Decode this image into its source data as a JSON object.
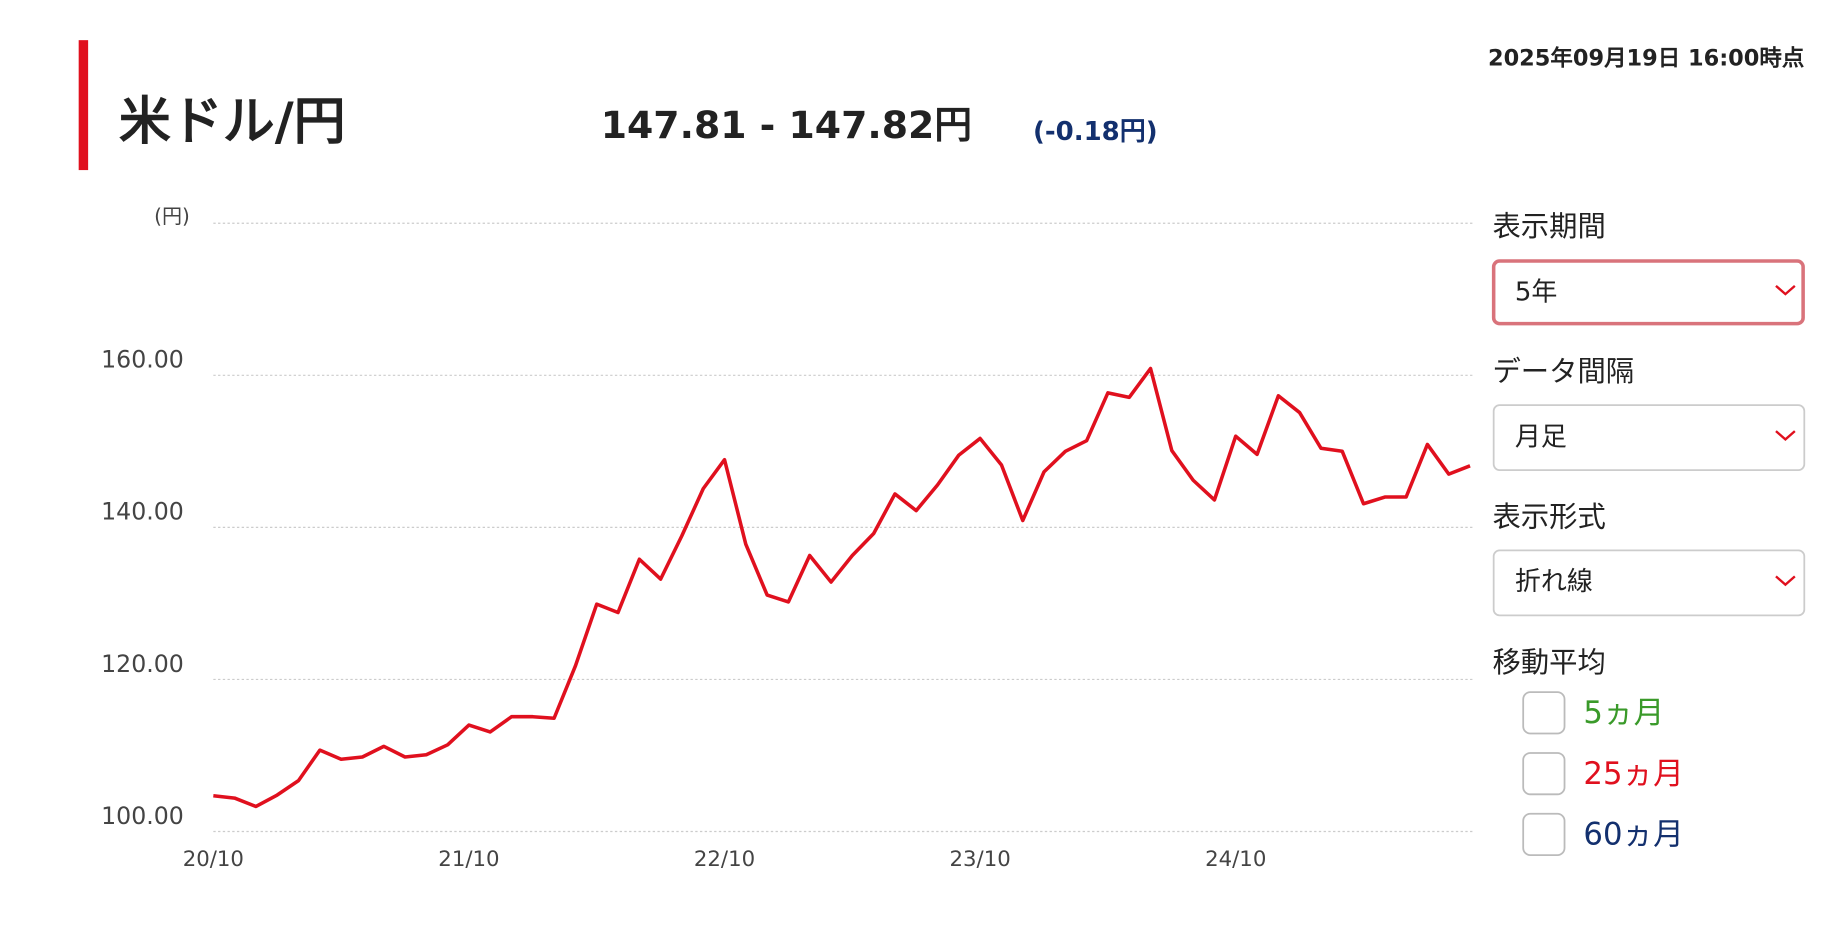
{
  "header": {
    "title": "米ドル/円",
    "price": "147.81 - 147.82円",
    "change": "(-0.18円)",
    "timestamp": "2025年09月19日 16:00時点"
  },
  "controls": {
    "period": {
      "label": "表示期間",
      "value": "5年"
    },
    "interval": {
      "label": "データ間隔",
      "value": "月足"
    },
    "format": {
      "label": "表示形式",
      "value": "折れ線"
    },
    "moving_average": {
      "label": "移動平均",
      "options": [
        {
          "label": "5ヵ月",
          "color": "#3a9a2a"
        },
        {
          "label": "25ヵ月",
          "color": "#e0101e"
        },
        {
          "label": "60ヵ月",
          "color": "#13306e"
        }
      ]
    }
  },
  "chart_data": {
    "type": "line",
    "y_label": "(円)",
    "color": "#e0101e",
    "grid": true,
    "categories": [
      "20/10",
      null,
      null,
      null,
      null,
      null,
      null,
      null,
      null,
      null,
      null,
      null,
      "21/10",
      null,
      null,
      null,
      null,
      null,
      null,
      null,
      null,
      null,
      null,
      null,
      "22/10",
      null,
      null,
      null,
      null,
      null,
      null,
      null,
      null,
      null,
      null,
      null,
      "23/10",
      null,
      null,
      null,
      null,
      null,
      null,
      null,
      null,
      null,
      null,
      null,
      "24/10",
      null,
      null,
      null,
      null,
      null,
      null,
      null,
      null,
      null,
      null,
      null
    ],
    "values": [
      104.7,
      104.4,
      103.3,
      104.8,
      106.7,
      110.7,
      109.5,
      109.8,
      111.2,
      109.8,
      110.1,
      111.4,
      114.0,
      113.1,
      115.1,
      115.1,
      114.9,
      121.8,
      129.9,
      128.8,
      135.8,
      133.2,
      138.9,
      145.1,
      148.9,
      137.8,
      131.1,
      130.2,
      136.3,
      132.8,
      136.3,
      139.2,
      144.4,
      142.2,
      145.6,
      149.5,
      151.7,
      148.2,
      140.9,
      147.3,
      150.0,
      151.4,
      157.7,
      157.1,
      160.9,
      150.1,
      146.2,
      143.6,
      152.0,
      149.6,
      157.3,
      155.1,
      150.4,
      150.0,
      143.1,
      144.0,
      144.0,
      150.9,
      147.0,
      148.1
    ],
    "ylim": [
      100,
      180
    ],
    "yticks": [
      {
        "value": 100,
        "label": "100.00"
      },
      {
        "value": 120,
        "label": "120.00"
      },
      {
        "value": 140,
        "label": "140.00"
      },
      {
        "value": 160,
        "label": "160.00"
      }
    ]
  }
}
